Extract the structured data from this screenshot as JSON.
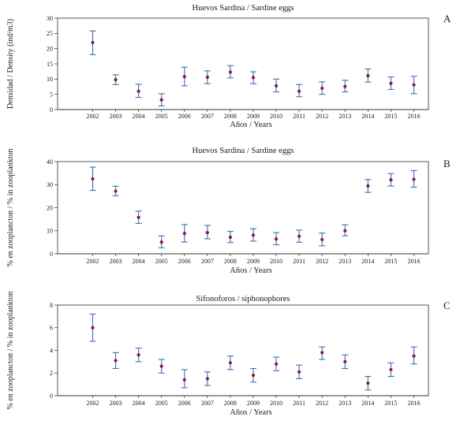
{
  "chart_data": [
    {
      "type": "scatter",
      "panel_letter": "A",
      "title": "Huevos Sardina / Sardine eggs",
      "xlabel": "Años / Years",
      "ylabel": "Densidad / Density (ind/m3)",
      "ylim": [
        0,
        30
      ],
      "yticks": [
        0,
        5,
        10,
        15,
        20,
        25,
        30
      ],
      "categories": [
        "2002",
        "2003",
        "2004",
        "2005",
        "2006",
        "2007",
        "2008",
        "2009",
        "2010",
        "2011",
        "2012",
        "2013",
        "2014",
        "2015",
        "2016"
      ],
      "values": [
        22.0,
        9.8,
        6.0,
        3.2,
        10.8,
        10.6,
        12.3,
        10.5,
        7.8,
        6.0,
        7.0,
        7.6,
        11.1,
        8.6,
        8.1
      ],
      "error_low": [
        18.0,
        8.2,
        4.0,
        1.2,
        7.8,
        8.5,
        10.4,
        8.5,
        5.8,
        4.2,
        5.0,
        5.8,
        9.0,
        6.6,
        5.2
      ],
      "error_high": [
        25.8,
        11.4,
        8.3,
        5.2,
        13.9,
        12.7,
        14.4,
        12.4,
        10.0,
        8.2,
        9.1,
        9.6,
        13.3,
        10.7,
        10.9
      ],
      "grid": false,
      "legend": "none"
    },
    {
      "type": "scatter",
      "panel_letter": "B",
      "title": "Huevos Sardina / Sardine eggs",
      "xlabel": "Años / Years",
      "ylabel": "% en zooplancton / % in zooplankton",
      "ylim": [
        0,
        40
      ],
      "yticks": [
        0,
        10,
        20,
        30,
        40
      ],
      "categories": [
        "2002",
        "2003",
        "2004",
        "2005",
        "2006",
        "2007",
        "2008",
        "2009",
        "2010",
        "2011",
        "2012",
        "2013",
        "2014",
        "2015",
        "2016"
      ],
      "values": [
        32.5,
        27.2,
        15.8,
        5.1,
        8.8,
        9.2,
        7.2,
        8.1,
        6.4,
        7.6,
        6.2,
        10.0,
        29.4,
        32.1,
        32.3
      ],
      "error_low": [
        27.5,
        25.2,
        13.2,
        2.6,
        5.1,
        6.5,
        4.9,
        5.5,
        3.9,
        5.0,
        3.5,
        7.8,
        26.6,
        29.4,
        28.9
      ],
      "error_high": [
        37.6,
        29.3,
        18.5,
        7.8,
        12.7,
        12.3,
        9.7,
        10.9,
        9.2,
        10.3,
        9.0,
        12.6,
        32.2,
        34.8,
        36.1
      ],
      "grid": false,
      "legend": "none"
    },
    {
      "type": "scatter",
      "panel_letter": "C",
      "title": "Sifonoforos / siphonophores",
      "xlabel": "Años / Years",
      "ylabel": "% en zooplancton / % in zooplankton",
      "ylim": [
        0,
        8
      ],
      "yticks": [
        0,
        2,
        4,
        6,
        8
      ],
      "categories": [
        "2002",
        "2003",
        "2004",
        "2005",
        "2006",
        "2007",
        "2008",
        "2009",
        "2010",
        "2011",
        "2012",
        "2013",
        "2014",
        "2015",
        "2016"
      ],
      "values": [
        6.0,
        3.1,
        3.6,
        2.6,
        1.4,
        1.5,
        2.9,
        1.8,
        2.8,
        2.1,
        3.8,
        3.0,
        1.1,
        2.3,
        3.5
      ],
      "error_low": [
        4.8,
        2.4,
        3.0,
        2.0,
        0.7,
        0.9,
        2.3,
        1.2,
        2.2,
        1.5,
        3.2,
        2.4,
        0.5,
        1.7,
        2.8
      ],
      "error_high": [
        7.2,
        3.8,
        4.2,
        3.2,
        2.3,
        2.1,
        3.5,
        2.4,
        3.4,
        2.7,
        4.3,
        3.6,
        1.7,
        2.9,
        4.3
      ],
      "grid": false,
      "legend": "none"
    }
  ]
}
